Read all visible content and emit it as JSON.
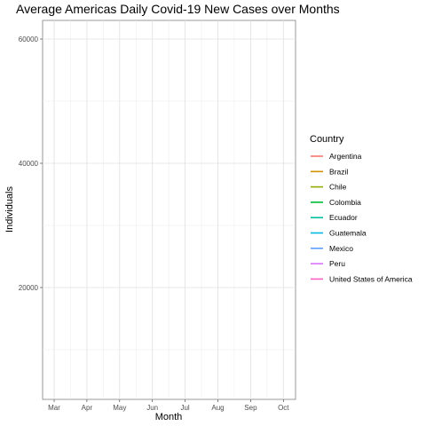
{
  "chart_data": {
    "type": "line",
    "title": "Average Americas Daily Covid-19 New Cases over Months",
    "xlabel": "Month",
    "ylabel": "Individuals",
    "categories": [
      "Mar",
      "Apr",
      "May",
      "Jun",
      "Jul",
      "Aug",
      "Sep",
      "Oct"
    ],
    "ylim": [
      2000,
      63000
    ],
    "yticks": [
      20000,
      40000,
      60000
    ],
    "ytick_labels": [
      "20000",
      "40000",
      "60000"
    ],
    "grid": true,
    "legend": {
      "title": "Country",
      "placement": "right",
      "entries": [
        {
          "name": "Argentina",
          "color": "#F8766D"
        },
        {
          "name": "Brazil",
          "color": "#D39200"
        },
        {
          "name": "Chile",
          "color": "#93AA00"
        },
        {
          "name": "Colombia",
          "color": "#00BA38"
        },
        {
          "name": "Ecuador",
          "color": "#00C19F"
        },
        {
          "name": "Guatemala",
          "color": "#00B9E3"
        },
        {
          "name": "Mexico",
          "color": "#619CFF"
        },
        {
          "name": "Peru",
          "color": "#DB72FB"
        },
        {
          "name": "United States of America",
          "color": "#FF61C3"
        }
      ]
    },
    "series": []
  }
}
